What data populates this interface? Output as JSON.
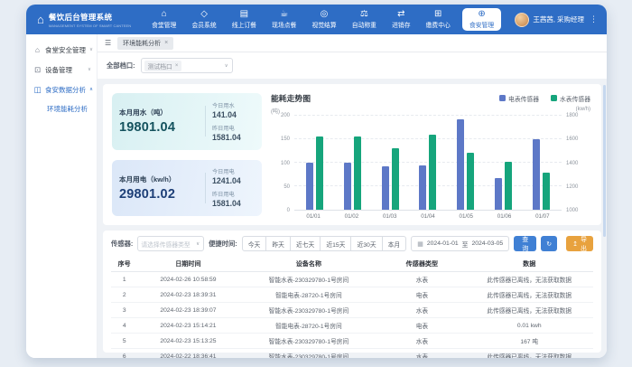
{
  "app": {
    "title": "餐饮后台管理系统",
    "subtitle": "MANAGEMENT SYSTEM OF SMART CANTEEN"
  },
  "colors": {
    "header_bg": "#2e6dc5",
    "primary_button": "#4080d4",
    "export_orange": "#e8a23e",
    "bar_electric": "#5d78c7",
    "bar_water": "#16a57c"
  },
  "header": {
    "nav_items": [
      {
        "label": "食堂管理",
        "icon": "canteen-icon",
        "active": false
      },
      {
        "label": "会员系统",
        "icon": "member-icon",
        "active": false
      },
      {
        "label": "线上订餐",
        "icon": "online-order-icon",
        "active": false
      },
      {
        "label": "现场点餐",
        "icon": "onsite-order-icon",
        "active": false
      },
      {
        "label": "视觉结算",
        "icon": "vision-checkout-icon",
        "active": false
      },
      {
        "label": "自动称重",
        "icon": "auto-weigh-icon",
        "active": false
      },
      {
        "label": "进销存",
        "icon": "inventory-icon",
        "active": false
      },
      {
        "label": "缴费中心",
        "icon": "payment-icon",
        "active": false
      },
      {
        "label": "食安管理",
        "icon": "food-safety-icon",
        "active": true
      }
    ],
    "user": {
      "name": "王茜茜, 采购经理"
    }
  },
  "sidebar": {
    "items": [
      {
        "label": "食堂安全管理",
        "icon": "safety-menu-icon",
        "expanded": false,
        "active": false,
        "children": []
      },
      {
        "label": "设备管理",
        "icon": "device-menu-icon",
        "expanded": false,
        "active": false,
        "children": []
      },
      {
        "label": "食安数据分析",
        "icon": "analysis-menu-icon",
        "expanded": true,
        "active": true,
        "children": [
          {
            "label": "环境能耗分析",
            "active": true
          }
        ]
      }
    ]
  },
  "tabs": {
    "active": "环境能耗分析"
  },
  "filters": {
    "stall_label": "全部档口:",
    "stall_tag": "测试档口",
    "sensor_label": "传感器:",
    "sensor_placeholder": "请选择传感器类型",
    "quick_label": "便捷时间:",
    "quick_buttons": [
      "今天",
      "昨天",
      "近七天",
      "近15天",
      "近30天",
      "本月"
    ],
    "date_start": "2024-01-01",
    "date_sep": "至",
    "date_end": "2024-03-05",
    "search_label": "查询",
    "export_label": "导出"
  },
  "stats": [
    {
      "title": "本月用水（吨）",
      "value": "19801.04",
      "value_color": "#14525e",
      "bg": "linear-gradient(100deg,#d8f0f2,#eefafb)",
      "side": [
        {
          "label": "今日用水",
          "value": "141.04"
        },
        {
          "label": "昨日用电",
          "value": "1581.04"
        }
      ]
    },
    {
      "title": "本月用电（kw/h）",
      "value": "29801.02",
      "value_color": "#1d3f77",
      "bg": "linear-gradient(100deg,#dbe7f8,#eef5fd)",
      "side": [
        {
          "label": "今日用电",
          "value": "1241.04"
        },
        {
          "label": "昨日用电",
          "value": "1581.04"
        }
      ]
    }
  ],
  "chart_data": {
    "type": "bar",
    "title": "能耗走势图",
    "categories": [
      "01/01",
      "01/02",
      "01/03",
      "01/04",
      "01/05",
      "01/06",
      "01/07"
    ],
    "series": [
      {
        "name": "电表传感器",
        "axis": "right",
        "color": "#5d78c7",
        "values": [
          1400,
          1400,
          1370,
          1380,
          1770,
          1270,
          1600
        ]
      },
      {
        "name": "水表传感器",
        "axis": "left",
        "color": "#16a57c",
        "values": [
          155,
          155,
          131,
          160,
          122,
          102,
          78
        ]
      }
    ],
    "left_axis": {
      "label": "(吨)",
      "ticks": [
        0,
        50,
        100,
        150,
        200
      ],
      "range": [
        0,
        200
      ]
    },
    "right_axis": {
      "label": "(kw/h)",
      "ticks": [
        1000,
        1200,
        1400,
        1600,
        1800
      ],
      "range": [
        1000,
        1800
      ]
    },
    "legend_position": "top-right",
    "grid": true
  },
  "table": {
    "columns": [
      "序号",
      "日期时间",
      "设备名称",
      "传感器类型",
      "数据"
    ],
    "rows": [
      [
        "1",
        "2024-02-26 10:58:59",
        "智能水表-230329780-1号房间",
        "水表",
        "此传感器已离线，无法获取数据"
      ],
      [
        "2",
        "2024-02-23 18:39:31",
        "智能电表-28720-1号房间",
        "电表",
        "此传感器已离线，无法获取数据"
      ],
      [
        "3",
        "2024-02-23 18:39:07",
        "智能水表-230329780-1号房间",
        "水表",
        "此传感器已离线，无法获取数据"
      ],
      [
        "4",
        "2024-02-23 15:14:21",
        "智能电表-28720-1号房间",
        "电表",
        "0.01 kwh"
      ],
      [
        "5",
        "2024-02-23 15:13:25",
        "智能水表-230329780-1号房间",
        "水表",
        "167 吨"
      ],
      [
        "6",
        "2024-02-22 18:36:41",
        "智能水表-230329780-1号房间",
        "水表",
        "此传感器已离线，无法获取数据"
      ]
    ]
  }
}
